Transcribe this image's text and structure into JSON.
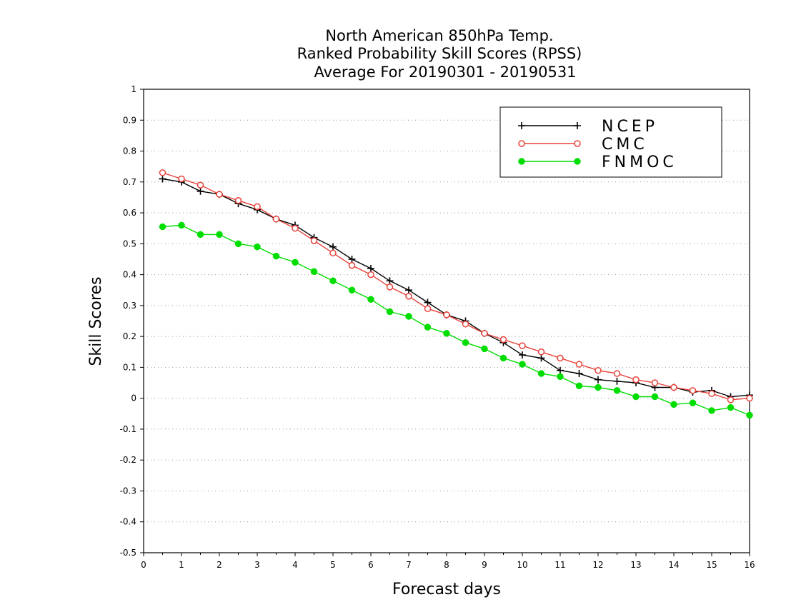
{
  "chart_data": {
    "type": "line",
    "title_lines": [
      "North American 850hPa Temp.",
      "Ranked Probability Skill Scores (RPSS)",
      "Average For 20190301 - 20190531"
    ],
    "xlabel": "Forecast days",
    "ylabel": "Skill Scores",
    "xlim": [
      0,
      16
    ],
    "ylim": [
      -0.5,
      1
    ],
    "x_ticks": [
      "0",
      "1",
      "2",
      "3",
      "4",
      "5",
      "6",
      "7",
      "8",
      "9",
      "10",
      "11",
      "12",
      "13",
      "14",
      "15",
      "16"
    ],
    "y_ticks": [
      "1",
      "0.9",
      "0.8",
      "0.7",
      "0.6",
      "0.5",
      "0.4",
      "0.3",
      "0.2",
      "0.1",
      "0",
      "-0.1",
      "-0.2",
      "-0.3",
      "-0.4",
      "-0.5"
    ],
    "grid": "horizontal dotted",
    "legend_position": "top-right",
    "x": [
      0.5,
      1,
      1.5,
      2,
      2.5,
      3,
      3.5,
      4,
      4.5,
      5,
      5.5,
      6,
      6.5,
      7,
      7.5,
      8,
      8.5,
      9,
      9.5,
      10,
      10.5,
      11,
      11.5,
      12,
      12.5,
      13,
      13.5,
      14,
      14.5,
      15,
      15.5,
      16
    ],
    "series": [
      {
        "name": "NCEP",
        "color": "#000000",
        "marker": "plus",
        "values": [
          0.71,
          0.7,
          0.67,
          0.66,
          0.63,
          0.61,
          0.58,
          0.56,
          0.52,
          0.49,
          0.45,
          0.42,
          0.38,
          0.35,
          0.31,
          0.27,
          0.25,
          0.21,
          0.18,
          0.14,
          0.13,
          0.09,
          0.08,
          0.06,
          0.055,
          0.05,
          0.035,
          0.035,
          0.02,
          0.025,
          0.005,
          0.01
        ]
      },
      {
        "name": "CMC",
        "color": "#e8413a",
        "marker": "open-circle",
        "values": [
          0.73,
          0.71,
          0.69,
          0.66,
          0.64,
          0.62,
          0.58,
          0.55,
          0.51,
          0.47,
          0.43,
          0.4,
          0.36,
          0.33,
          0.29,
          0.27,
          0.24,
          0.21,
          0.19,
          0.17,
          0.15,
          0.13,
          0.11,
          0.09,
          0.08,
          0.06,
          0.05,
          0.035,
          0.025,
          0.015,
          -0.005,
          0.0
        ]
      },
      {
        "name": "FNMOC",
        "color": "#00dd00",
        "marker": "filled-circle",
        "values": [
          0.555,
          0.56,
          0.53,
          0.53,
          0.5,
          0.49,
          0.46,
          0.44,
          0.41,
          0.38,
          0.35,
          0.32,
          0.28,
          0.265,
          0.23,
          0.21,
          0.18,
          0.16,
          0.13,
          0.11,
          0.08,
          0.07,
          0.04,
          0.035,
          0.025,
          0.005,
          0.005,
          -0.02,
          -0.015,
          -0.04,
          -0.03,
          -0.055
        ]
      }
    ]
  }
}
